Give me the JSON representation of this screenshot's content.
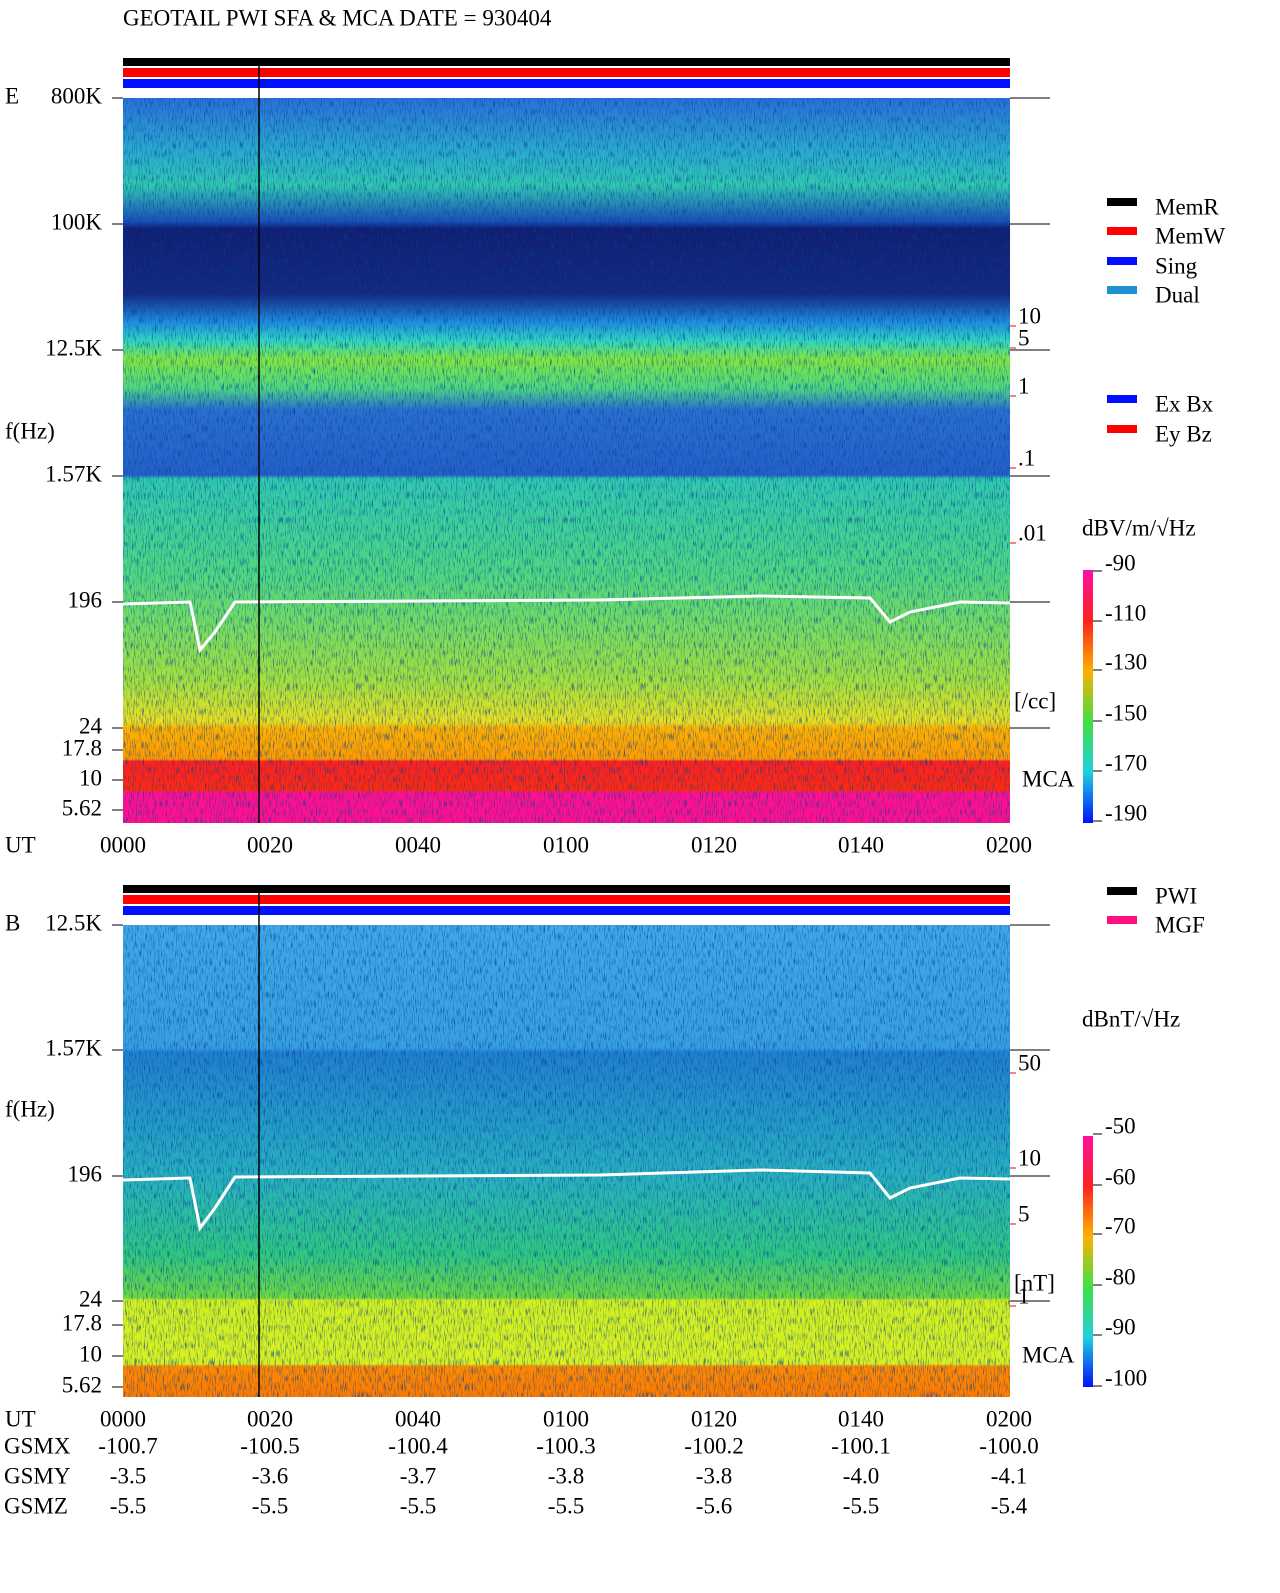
{
  "title": "GEOTAIL   PWI SFA & MCA   DATE = 930404",
  "panels": [
    {
      "component": "E",
      "y_label": "f(Hz)",
      "mca_label": "MCA",
      "time_label": "UT",
      "freq_ticks": [
        "800K",
        "100K",
        "12.5K",
        "1.57K",
        "196",
        "24",
        "17.8",
        "10",
        "5.62"
      ],
      "right_ticks": [
        "10",
        "5",
        "1",
        ".1",
        ".01"
      ],
      "right_unit": "[/cc]",
      "time_ticks": [
        "0000",
        "0020",
        "0040",
        "0100",
        "0120",
        "0140",
        "0200"
      ],
      "legend": [
        {
          "label": "MemR",
          "color": "#000000"
        },
        {
          "label": "MemW",
          "color": "#ff0000"
        },
        {
          "label": "Sing",
          "color": "#0010ff"
        },
        {
          "label": "Dual",
          "color": "#2090d0"
        }
      ],
      "legend2": [
        {
          "label": "Ex Bx",
          "color": "#0010ff"
        },
        {
          "label": "Ey Bz",
          "color": "#ff0000"
        }
      ],
      "colorbar_unit": "dBV/m/√Hz",
      "colorbar_ticks": [
        "-90",
        "-110",
        "-130",
        "-150",
        "-170",
        "-190"
      ]
    },
    {
      "component": "B",
      "y_label": "f(Hz)",
      "mca_label": "MCA",
      "time_label": "UT",
      "freq_ticks": [
        "12.5K",
        "1.57K",
        "196",
        "24",
        "17.8",
        "10",
        "5.62"
      ],
      "right_ticks": [
        "50",
        "10",
        "5",
        "1"
      ],
      "right_unit": "[nT]",
      "time_ticks": [
        "0000",
        "0020",
        "0040",
        "0100",
        "0120",
        "0140",
        "0200"
      ],
      "legend": [
        {
          "label": "PWI",
          "color": "#000000"
        },
        {
          "label": "MGF",
          "color": "#ff1080"
        }
      ],
      "colorbar_unit": "dBnT/√Hz",
      "colorbar_ticks": [
        "-50",
        "-60",
        "-70",
        "-80",
        "-90",
        "-100"
      ]
    }
  ],
  "orbit": [
    {
      "label": "GSMX",
      "values": [
        "-100.7",
        "-100.5",
        "-100.4",
        "-100.3",
        "-100.2",
        "-100.1",
        "-100.0"
      ]
    },
    {
      "label": "GSMY",
      "values": [
        "-3.5",
        "-3.6",
        "-3.7",
        "-3.8",
        "-3.8",
        "-4.0",
        "-4.1"
      ]
    },
    {
      "label": "GSMZ",
      "values": [
        "-5.5",
        "-5.5",
        "-5.5",
        "-5.5",
        "-5.6",
        "-5.5",
        "-5.4"
      ]
    }
  ]
}
